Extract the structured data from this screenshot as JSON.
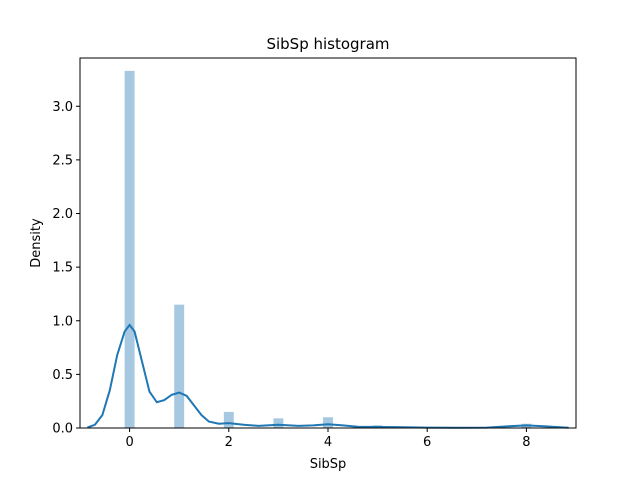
{
  "chart_data": {
    "type": "bar",
    "title": "SibSp histogram",
    "xlabel": "SibSp",
    "ylabel": "Density",
    "xlim": [
      -1.0,
      9.0
    ],
    "ylim": [
      0,
      3.45
    ],
    "xticks": [
      0,
      2,
      4,
      6,
      8
    ],
    "yticks": [
      0.0,
      0.5,
      1.0,
      1.5,
      2.0,
      2.5,
      3.0
    ],
    "bin_width": 0.2,
    "bins": [
      {
        "x": 0.0,
        "density": 3.33
      },
      {
        "x": 1.0,
        "density": 1.15
      },
      {
        "x": 2.0,
        "density": 0.15
      },
      {
        "x": 3.0,
        "density": 0.09
      },
      {
        "x": 4.0,
        "density": 0.1
      },
      {
        "x": 5.0,
        "density": 0.025
      },
      {
        "x": 8.0,
        "density": 0.04
      }
    ],
    "kde": {
      "x": [
        -0.85,
        -0.7,
        -0.55,
        -0.4,
        -0.25,
        -0.1,
        0.0,
        0.1,
        0.25,
        0.4,
        0.55,
        0.7,
        0.85,
        1.0,
        1.15,
        1.3,
        1.45,
        1.6,
        1.8,
        2.0,
        2.3,
        2.6,
        3.0,
        3.4,
        3.7,
        4.0,
        4.3,
        4.6,
        5.0,
        5.4,
        6.0,
        6.6,
        7.2,
        7.6,
        8.0,
        8.4,
        8.85
      ],
      "y": [
        0.005,
        0.03,
        0.12,
        0.35,
        0.68,
        0.9,
        0.96,
        0.9,
        0.62,
        0.34,
        0.24,
        0.26,
        0.31,
        0.33,
        0.3,
        0.21,
        0.12,
        0.06,
        0.04,
        0.045,
        0.03,
        0.02,
        0.03,
        0.02,
        0.025,
        0.035,
        0.025,
        0.012,
        0.01,
        0.008,
        0.003,
        0.002,
        0.004,
        0.015,
        0.025,
        0.015,
        0.002
      ]
    },
    "colors": {
      "bar": "#a6c8e0",
      "line": "#1f77b4",
      "axis": "#000000"
    },
    "grid": false,
    "legend": "none"
  }
}
